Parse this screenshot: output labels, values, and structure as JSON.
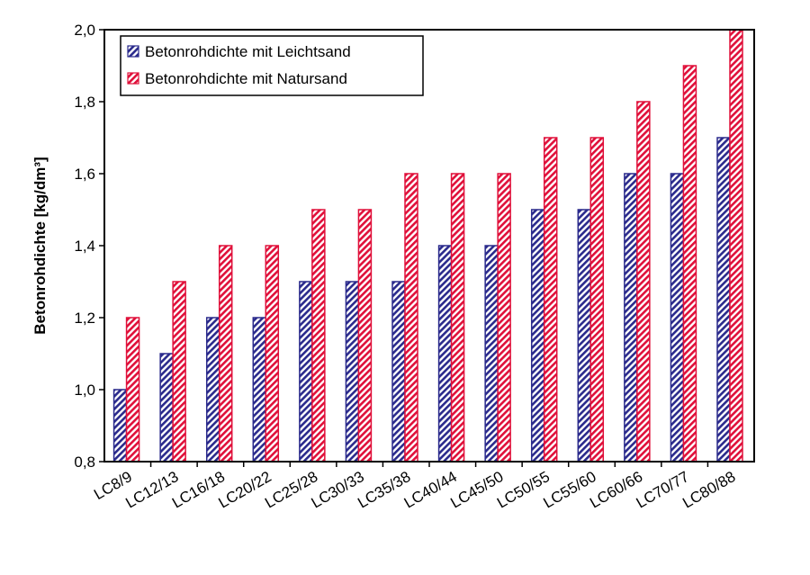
{
  "chart_data": {
    "type": "bar",
    "ylabel": "Betonrohdichte [kg/dm³]",
    "ylim": [
      0.8,
      2.0
    ],
    "yticks": [
      "0,8",
      "1,0",
      "1,2",
      "1,4",
      "1,6",
      "1,8",
      "2,0"
    ],
    "categories": [
      "LC8/9",
      "LC12/13",
      "LC16/18",
      "LC20/22",
      "LC25/28",
      "LC30/33",
      "LC35/38",
      "LC40/44",
      "LC45/50",
      "LC50/55",
      "LC55/60",
      "LC60/66",
      "LC70/77",
      "LC80/88"
    ],
    "series": [
      {
        "name": "Betonrohdichte mit Leichtsand",
        "color": "#2a2a8c",
        "values": [
          1.0,
          1.1,
          1.2,
          1.2,
          1.3,
          1.3,
          1.3,
          1.4,
          1.4,
          1.5,
          1.5,
          1.6,
          1.6,
          1.7
        ]
      },
      {
        "name": "Betonrohdichte mit Natursand",
        "color": "#e0103a",
        "values": [
          1.2,
          1.3,
          1.4,
          1.4,
          1.5,
          1.5,
          1.6,
          1.6,
          1.6,
          1.7,
          1.7,
          1.8,
          1.9,
          2.0
        ]
      }
    ],
    "legend": "top-left",
    "grid": false
  }
}
